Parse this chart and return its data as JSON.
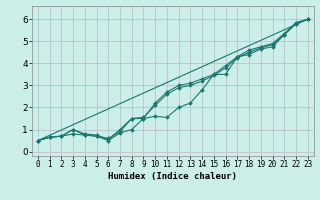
{
  "xlabel": "Humidex (Indice chaleur)",
  "x_values": [
    0,
    1,
    2,
    3,
    4,
    5,
    6,
    7,
    8,
    9,
    10,
    11,
    12,
    13,
    14,
    15,
    16,
    17,
    18,
    19,
    20,
    21,
    22,
    23
  ],
  "line1_y": [
    0.5,
    0.65,
    0.7,
    0.8,
    0.75,
    0.7,
    0.5,
    0.85,
    1.0,
    1.5,
    1.6,
    1.55,
    2.0,
    2.2,
    2.8,
    3.5,
    3.5,
    4.3,
    4.4,
    4.65,
    4.75,
    5.3,
    5.8,
    6.0
  ],
  "line2_y": [
    0.5,
    0.65,
    0.7,
    1.0,
    0.75,
    0.7,
    0.6,
    0.9,
    1.5,
    1.5,
    2.2,
    2.7,
    3.0,
    3.1,
    3.3,
    3.5,
    3.9,
    4.3,
    4.6,
    4.75,
    4.9,
    5.35,
    5.85,
    6.0
  ],
  "line3_y": [
    0.5,
    0.65,
    0.7,
    1.0,
    0.8,
    0.75,
    0.55,
    1.0,
    1.5,
    1.55,
    2.1,
    2.6,
    2.9,
    3.0,
    3.2,
    3.45,
    3.8,
    4.25,
    4.5,
    4.7,
    4.85,
    5.3,
    5.8,
    6.0
  ],
  "straight_line": [
    [
      0,
      0.5
    ],
    [
      23,
      6.0
    ]
  ],
  "line_color": "#1a7870",
  "bg_color": "#cceee8",
  "grid_color": "#b8b8c8",
  "xlim": [
    -0.5,
    23.5
  ],
  "ylim": [
    -0.2,
    6.6
  ],
  "yticks": [
    0,
    1,
    2,
    3,
    4,
    5,
    6
  ],
  "xtick_labels": [
    "0",
    "1",
    "2",
    "3",
    "4",
    "5",
    "6",
    "7",
    "8",
    "9",
    "10",
    "11",
    "12",
    "13",
    "14",
    "15",
    "16",
    "17",
    "18",
    "19",
    "20",
    "21",
    "22",
    "23"
  ],
  "marker": "D",
  "markersize": 2.0,
  "linewidth": 0.8,
  "xlabel_fontsize": 6.5,
  "tick_fontsize": 5.5,
  "ytick_fontsize": 6.5
}
